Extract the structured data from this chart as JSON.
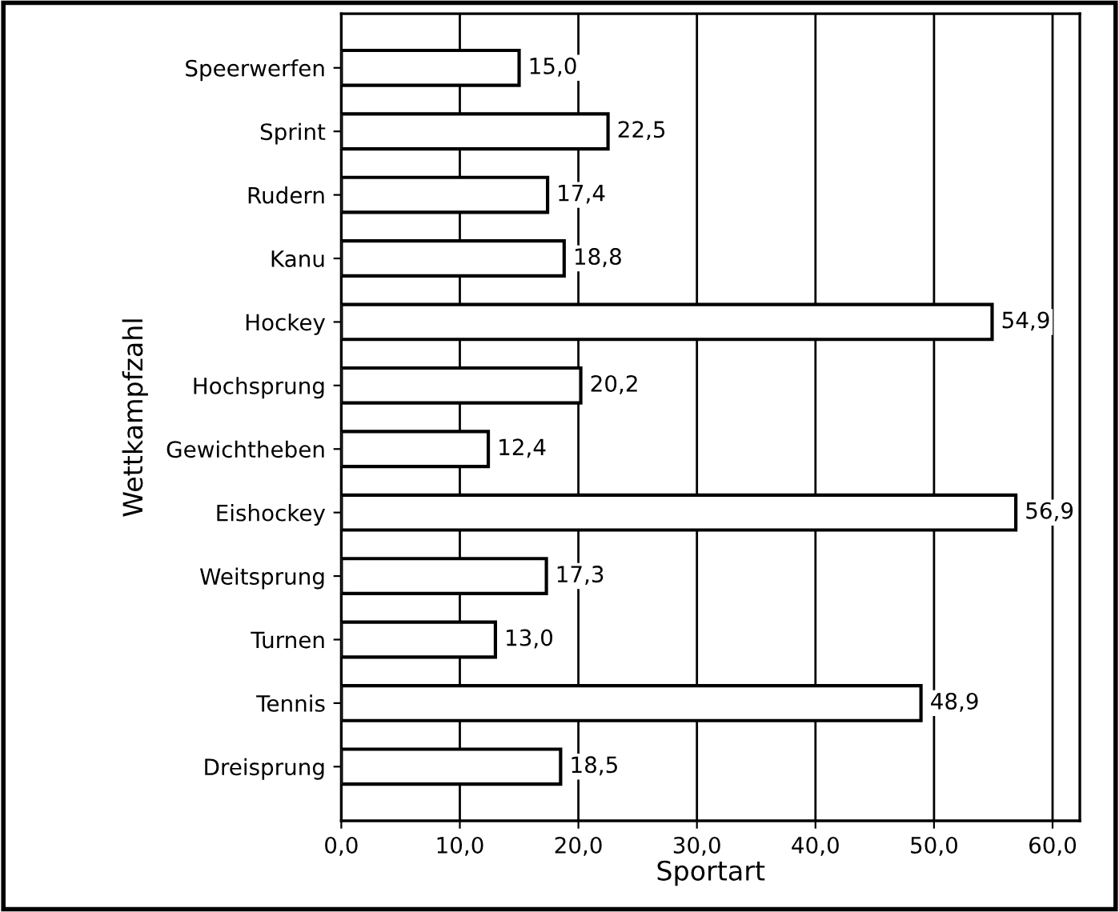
{
  "chart_data": {
    "type": "bar",
    "orientation": "horizontal",
    "xlabel": "Sportart",
    "ylabel": "Wettkampfzahl",
    "categories": [
      "Speerwerfen",
      "Sprint",
      "Rudern",
      "Kanu",
      "Hockey",
      "Hochsprung",
      "Gewichtheben",
      "Eishockey",
      "Weitsprung",
      "Turnen",
      "Tennis",
      "Dreisprung"
    ],
    "values": [
      15.0,
      22.5,
      17.4,
      18.8,
      54.9,
      20.2,
      12.4,
      56.9,
      17.3,
      13.0,
      48.9,
      18.5
    ],
    "value_labels": [
      "15,0",
      "22,5",
      "17,4",
      "18,8",
      "54,9",
      "20,2",
      "12,4",
      "56,9",
      "17,3",
      "13,0",
      "48,9",
      "18,5"
    ],
    "color": "#ffffff",
    "xlim": [
      0,
      62.3
    ],
    "xticks": [
      {
        "value": 0,
        "label": "0,0"
      },
      {
        "value": 10,
        "label": "10,0"
      },
      {
        "value": 20,
        "label": "20,0"
      },
      {
        "value": 30,
        "label": "30,0"
      },
      {
        "value": 40,
        "label": "40,0"
      },
      {
        "value": 50,
        "label": "50,0"
      },
      {
        "value": 60,
        "label": "60,0"
      }
    ],
    "grid": "x",
    "legend": false
  }
}
